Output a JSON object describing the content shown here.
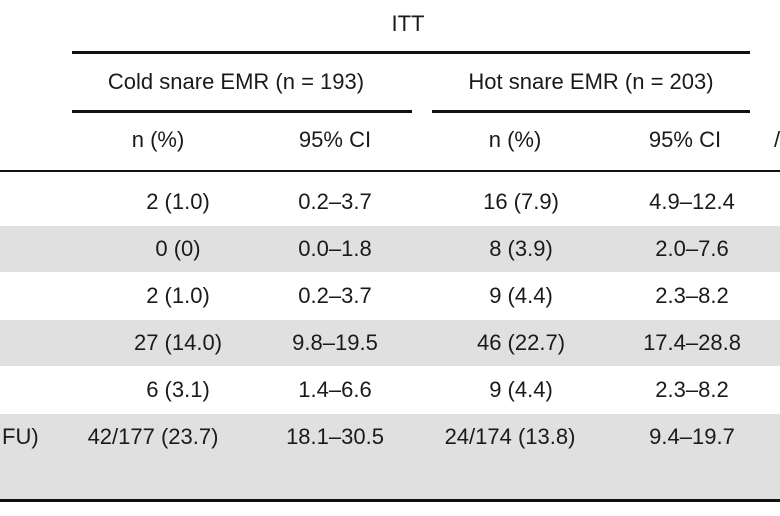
{
  "table": {
    "group_header": "ITT",
    "arms": [
      {
        "label": "Cold snare EMR (n = 193)"
      },
      {
        "label": "Hot snare EMR (n = 203)"
      }
    ],
    "subheaders": [
      "n (%)",
      "95% CI",
      "n (%)",
      "95% CI"
    ],
    "right_edge_fragment": "/",
    "rows": [
      {
        "left_fragment": "",
        "cold_n": "2 (1.0)",
        "cold_ci": "0.2–3.7",
        "hot_n": "16 (7.9)",
        "hot_ci": "4.9–12.4"
      },
      {
        "left_fragment": "",
        "cold_n": "0 (0)",
        "cold_ci": "0.0–1.8",
        "hot_n": "8 (3.9)",
        "hot_ci": "2.0–7.6"
      },
      {
        "left_fragment": "",
        "cold_n": "2 (1.0)",
        "cold_ci": "0.2–3.7",
        "hot_n": "9 (4.4)",
        "hot_ci": "2.3–8.2"
      },
      {
        "left_fragment": "",
        "cold_n": "27 (14.0)",
        "cold_ci": "9.8–19.5",
        "hot_n": "46 (22.7)",
        "hot_ci": "17.4–28.8"
      },
      {
        "left_fragment": "",
        "cold_n": "6 (3.1)",
        "cold_ci": "1.4–6.6",
        "hot_n": "9 (4.4)",
        "hot_ci": "2.3–8.2"
      },
      {
        "left_fragment": "FU)",
        "cold_n": "42/177 (23.7)",
        "cold_ci": "18.1–30.5",
        "hot_n": "24/174 (13.8)",
        "hot_ci": "9.4–19.7"
      }
    ]
  }
}
